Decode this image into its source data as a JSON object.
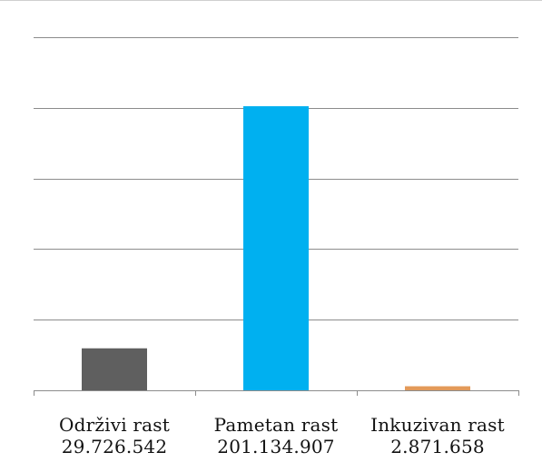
{
  "chart_data": {
    "type": "bar",
    "categories": [
      "Održivi rast",
      "Pametan rast",
      "Inkuzivan rast"
    ],
    "value_labels": [
      "29.726.542",
      "201.134.907",
      "2.871.658"
    ],
    "values": [
      29726542,
      201134907,
      2871658
    ],
    "colors": [
      "#5f5f5f",
      "#00b0f0",
      "#e39a5a"
    ],
    "ylim": [
      0,
      250000000
    ],
    "grid": true,
    "title": "",
    "xlabel": "",
    "ylabel": ""
  }
}
